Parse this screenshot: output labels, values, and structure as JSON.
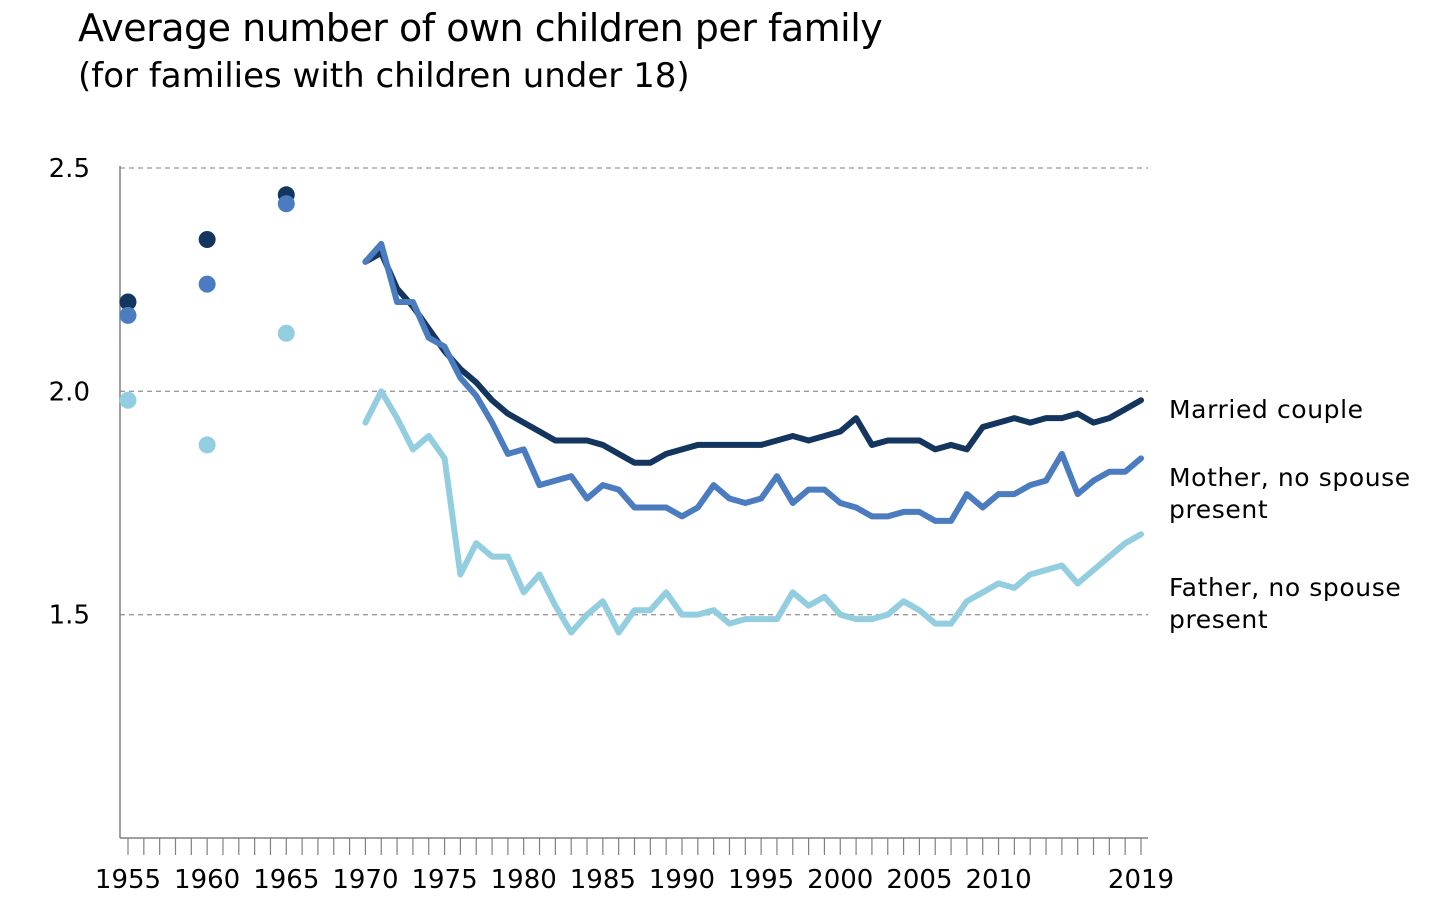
{
  "title": "Average number of own children per family",
  "subtitle": "(for families with children under 18)",
  "chart_data": {
    "type": "line",
    "title": "Average number of own children per family",
    "subtitle": "(for families with children under 18)",
    "xlabel": "",
    "ylabel": "",
    "xlim": [
      1955,
      2019
    ],
    "ylim": [
      1.0,
      2.5
    ],
    "y_ticks": [
      {
        "value": 1.5,
        "label": "1.5"
      },
      {
        "value": 2.0,
        "label": "2.0"
      },
      {
        "value": 2.5,
        "label": "2.5"
      }
    ],
    "x_ticks": [
      {
        "value": 1955,
        "label": "1955"
      },
      {
        "value": 1960,
        "label": "1960"
      },
      {
        "value": 1965,
        "label": "1965"
      },
      {
        "value": 1970,
        "label": "1970"
      },
      {
        "value": 1975,
        "label": "1975"
      },
      {
        "value": 1980,
        "label": "1980"
      },
      {
        "value": 1985,
        "label": "1985"
      },
      {
        "value": 1990,
        "label": "1990"
      },
      {
        "value": 1995,
        "label": "1995"
      },
      {
        "value": 2000,
        "label": "2000"
      },
      {
        "value": 2005,
        "label": "2005"
      },
      {
        "value": 2010,
        "label": "2010"
      },
      {
        "value": 2019,
        "label": "2019"
      }
    ],
    "grid": "horizontal dashed",
    "legend": "direct labels at right",
    "series": [
      {
        "name": "Married couple",
        "label_lines": [
          "Married couple"
        ],
        "color": "#14365e",
        "points": [
          {
            "x": 1955,
            "y": 2.2
          },
          {
            "x": 1960,
            "y": 2.34
          },
          {
            "x": 1965,
            "y": 2.44
          }
        ],
        "line": [
          {
            "x": 1970,
            "y": 2.29
          },
          {
            "x": 1971,
            "y": 2.31
          },
          {
            "x": 1972,
            "y": 2.23
          },
          {
            "x": 1973,
            "y": 2.19
          },
          {
            "x": 1974,
            "y": 2.14
          },
          {
            "x": 1975,
            "y": 2.09
          },
          {
            "x": 1976,
            "y": 2.05
          },
          {
            "x": 1977,
            "y": 2.02
          },
          {
            "x": 1978,
            "y": 1.98
          },
          {
            "x": 1979,
            "y": 1.95
          },
          {
            "x": 1980,
            "y": 1.93
          },
          {
            "x": 1981,
            "y": 1.91
          },
          {
            "x": 1982,
            "y": 1.89
          },
          {
            "x": 1983,
            "y": 1.89
          },
          {
            "x": 1984,
            "y": 1.89
          },
          {
            "x": 1985,
            "y": 1.88
          },
          {
            "x": 1986,
            "y": 1.86
          },
          {
            "x": 1987,
            "y": 1.84
          },
          {
            "x": 1988,
            "y": 1.84
          },
          {
            "x": 1989,
            "y": 1.86
          },
          {
            "x": 1990,
            "y": 1.87
          },
          {
            "x": 1991,
            "y": 1.88
          },
          {
            "x": 1992,
            "y": 1.88
          },
          {
            "x": 1993,
            "y": 1.88
          },
          {
            "x": 1994,
            "y": 1.88
          },
          {
            "x": 1995,
            "y": 1.88
          },
          {
            "x": 1996,
            "y": 1.89
          },
          {
            "x": 1997,
            "y": 1.9
          },
          {
            "x": 1998,
            "y": 1.89
          },
          {
            "x": 1999,
            "y": 1.9
          },
          {
            "x": 2000,
            "y": 1.91
          },
          {
            "x": 2001,
            "y": 1.94
          },
          {
            "x": 2002,
            "y": 1.88
          },
          {
            "x": 2003,
            "y": 1.89
          },
          {
            "x": 2004,
            "y": 1.89
          },
          {
            "x": 2005,
            "y": 1.89
          },
          {
            "x": 2006,
            "y": 1.87
          },
          {
            "x": 2007,
            "y": 1.88
          },
          {
            "x": 2008,
            "y": 1.87
          },
          {
            "x": 2009,
            "y": 1.92
          },
          {
            "x": 2010,
            "y": 1.93
          },
          {
            "x": 2011,
            "y": 1.94
          },
          {
            "x": 2012,
            "y": 1.93
          },
          {
            "x": 2013,
            "y": 1.94
          },
          {
            "x": 2014,
            "y": 1.94
          },
          {
            "x": 2015,
            "y": 1.95
          },
          {
            "x": 2016,
            "y": 1.93
          },
          {
            "x": 2017,
            "y": 1.94
          },
          {
            "x": 2018,
            "y": 1.96
          },
          {
            "x": 2019,
            "y": 1.98
          }
        ]
      },
      {
        "name": "Mother, no spouse present",
        "label_lines": [
          "Mother, no spouse",
          "present"
        ],
        "color": "#4a7cbf",
        "points": [
          {
            "x": 1955,
            "y": 2.17
          },
          {
            "x": 1960,
            "y": 2.24
          },
          {
            "x": 1965,
            "y": 2.42
          }
        ],
        "line": [
          {
            "x": 1970,
            "y": 2.29
          },
          {
            "x": 1971,
            "y": 2.33
          },
          {
            "x": 1972,
            "y": 2.2
          },
          {
            "x": 1973,
            "y": 2.2
          },
          {
            "x": 1974,
            "y": 2.12
          },
          {
            "x": 1975,
            "y": 2.1
          },
          {
            "x": 1976,
            "y": 2.03
          },
          {
            "x": 1977,
            "y": 1.99
          },
          {
            "x": 1978,
            "y": 1.93
          },
          {
            "x": 1979,
            "y": 1.86
          },
          {
            "x": 1980,
            "y": 1.87
          },
          {
            "x": 1981,
            "y": 1.79
          },
          {
            "x": 1982,
            "y": 1.8
          },
          {
            "x": 1983,
            "y": 1.81
          },
          {
            "x": 1984,
            "y": 1.76
          },
          {
            "x": 1985,
            "y": 1.79
          },
          {
            "x": 1986,
            "y": 1.78
          },
          {
            "x": 1987,
            "y": 1.74
          },
          {
            "x": 1988,
            "y": 1.74
          },
          {
            "x": 1989,
            "y": 1.74
          },
          {
            "x": 1990,
            "y": 1.72
          },
          {
            "x": 1991,
            "y": 1.74
          },
          {
            "x": 1992,
            "y": 1.79
          },
          {
            "x": 1993,
            "y": 1.76
          },
          {
            "x": 1994,
            "y": 1.75
          },
          {
            "x": 1995,
            "y": 1.76
          },
          {
            "x": 1996,
            "y": 1.81
          },
          {
            "x": 1997,
            "y": 1.75
          },
          {
            "x": 1998,
            "y": 1.78
          },
          {
            "x": 1999,
            "y": 1.78
          },
          {
            "x": 2000,
            "y": 1.75
          },
          {
            "x": 2001,
            "y": 1.74
          },
          {
            "x": 2002,
            "y": 1.72
          },
          {
            "x": 2003,
            "y": 1.72
          },
          {
            "x": 2004,
            "y": 1.73
          },
          {
            "x": 2005,
            "y": 1.73
          },
          {
            "x": 2006,
            "y": 1.71
          },
          {
            "x": 2007,
            "y": 1.71
          },
          {
            "x": 2008,
            "y": 1.77
          },
          {
            "x": 2009,
            "y": 1.74
          },
          {
            "x": 2010,
            "y": 1.77
          },
          {
            "x": 2011,
            "y": 1.77
          },
          {
            "x": 2012,
            "y": 1.79
          },
          {
            "x": 2013,
            "y": 1.8
          },
          {
            "x": 2014,
            "y": 1.86
          },
          {
            "x": 2015,
            "y": 1.77
          },
          {
            "x": 2016,
            "y": 1.8
          },
          {
            "x": 2017,
            "y": 1.82
          },
          {
            "x": 2018,
            "y": 1.82
          },
          {
            "x": 2019,
            "y": 1.85
          }
        ]
      },
      {
        "name": "Father, no spouse present",
        "label_lines": [
          "Father, no spouse",
          "present"
        ],
        "color": "#92cde0",
        "points": [
          {
            "x": 1955,
            "y": 1.98
          },
          {
            "x": 1960,
            "y": 1.88
          },
          {
            "x": 1965,
            "y": 2.13
          }
        ],
        "line": [
          {
            "x": 1970,
            "y": 1.93
          },
          {
            "x": 1971,
            "y": 2.0
          },
          {
            "x": 1972,
            "y": 1.94
          },
          {
            "x": 1973,
            "y": 1.87
          },
          {
            "x": 1974,
            "y": 1.9
          },
          {
            "x": 1975,
            "y": 1.85
          },
          {
            "x": 1976,
            "y": 1.59
          },
          {
            "x": 1977,
            "y": 1.66
          },
          {
            "x": 1978,
            "y": 1.63
          },
          {
            "x": 1979,
            "y": 1.63
          },
          {
            "x": 1980,
            "y": 1.55
          },
          {
            "x": 1981,
            "y": 1.59
          },
          {
            "x": 1982,
            "y": 1.52
          },
          {
            "x": 1983,
            "y": 1.46
          },
          {
            "x": 1984,
            "y": 1.5
          },
          {
            "x": 1985,
            "y": 1.53
          },
          {
            "x": 1986,
            "y": 1.46
          },
          {
            "x": 1987,
            "y": 1.51
          },
          {
            "x": 1988,
            "y": 1.51
          },
          {
            "x": 1989,
            "y": 1.55
          },
          {
            "x": 1990,
            "y": 1.5
          },
          {
            "x": 1991,
            "y": 1.5
          },
          {
            "x": 1992,
            "y": 1.51
          },
          {
            "x": 1993,
            "y": 1.48
          },
          {
            "x": 1994,
            "y": 1.49
          },
          {
            "x": 1995,
            "y": 1.49
          },
          {
            "x": 1996,
            "y": 1.49
          },
          {
            "x": 1997,
            "y": 1.55
          },
          {
            "x": 1998,
            "y": 1.52
          },
          {
            "x": 1999,
            "y": 1.54
          },
          {
            "x": 2000,
            "y": 1.5
          },
          {
            "x": 2001,
            "y": 1.49
          },
          {
            "x": 2002,
            "y": 1.49
          },
          {
            "x": 2003,
            "y": 1.5
          },
          {
            "x": 2004,
            "y": 1.53
          },
          {
            "x": 2005,
            "y": 1.51
          },
          {
            "x": 2006,
            "y": 1.48
          },
          {
            "x": 2007,
            "y": 1.48
          },
          {
            "x": 2008,
            "y": 1.53
          },
          {
            "x": 2009,
            "y": 1.55
          },
          {
            "x": 2010,
            "y": 1.57
          },
          {
            "x": 2011,
            "y": 1.56
          },
          {
            "x": 2012,
            "y": 1.59
          },
          {
            "x": 2013,
            "y": 1.6
          },
          {
            "x": 2014,
            "y": 1.61
          },
          {
            "x": 2015,
            "y": 1.57
          },
          {
            "x": 2016,
            "y": 1.6
          },
          {
            "x": 2017,
            "y": 1.63
          },
          {
            "x": 2018,
            "y": 1.66
          },
          {
            "x": 2019,
            "y": 1.68
          }
        ]
      }
    ]
  }
}
